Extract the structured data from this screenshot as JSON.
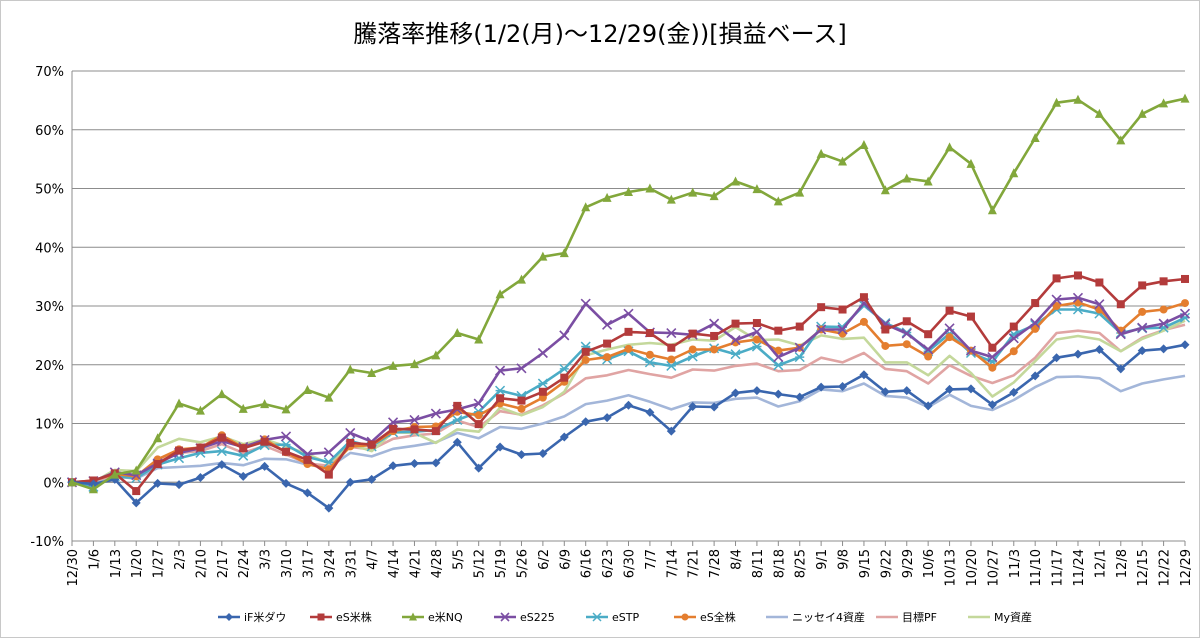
{
  "chart_data": {
    "type": "line",
    "title": "騰落率推移(1/2(月)～12/29(金))[損益ベース]",
    "xlabel": "",
    "ylabel": "",
    "ylim": [
      -10,
      70
    ],
    "y_ticks": [
      "-10%",
      "0%",
      "10%",
      "20%",
      "30%",
      "40%",
      "50%",
      "60%",
      "70%"
    ],
    "y_tick_values": [
      -10,
      0,
      10,
      20,
      30,
      40,
      50,
      60,
      70
    ],
    "grid": "horizontal",
    "legend": "bottom",
    "categories": [
      "12/30",
      "1/6",
      "1/13",
      "1/20",
      "1/27",
      "2/3",
      "2/10",
      "2/17",
      "2/24",
      "3/3",
      "3/10",
      "3/17",
      "3/24",
      "3/31",
      "4/7",
      "4/14",
      "4/21",
      "4/28",
      "5/5",
      "5/12",
      "5/19",
      "5/26",
      "6/2",
      "6/9",
      "6/16",
      "6/23",
      "6/30",
      "7/7",
      "7/14",
      "7/21",
      "7/28",
      "8/4",
      "8/11",
      "8/18",
      "8/25",
      "9/1",
      "9/8",
      "9/15",
      "9/22",
      "9/29",
      "10/6",
      "10/13",
      "10/20",
      "10/27",
      "11/3",
      "11/10",
      "11/17",
      "11/24",
      "12/1",
      "12/8",
      "12/15",
      "12/22",
      "12/29"
    ],
    "series": [
      {
        "name": "iF米ダウ",
        "color": "#3A66AE",
        "marker": "diamond",
        "values": [
          0,
          -0.3,
          0.5,
          -3.5,
          -0.2,
          -0.4,
          0.8,
          3.0,
          1.0,
          2.7,
          -0.2,
          -1.8,
          -4.4,
          0,
          0.5,
          2.8,
          3.2,
          3.3,
          6.8,
          2.4,
          6.0,
          4.7,
          4.9,
          7.7,
          10.3,
          11.0,
          13.1,
          11.9,
          8.7,
          12.9,
          12.8,
          15.2,
          15.6,
          15.0,
          14.5,
          16.2,
          16.3,
          18.3,
          15.4,
          15.6,
          13.0,
          15.8,
          15.9,
          13.2,
          15.3,
          18.1,
          21.2,
          21.8,
          22.6,
          19.3,
          22.4,
          22.7,
          23.4
        ]
      },
      {
        "name": "eS米株",
        "color": "#B33B3B",
        "marker": "square",
        "values": [
          0,
          0.3,
          1.5,
          -1.5,
          3.1,
          5.4,
          5.9,
          7.6,
          5.8,
          6.9,
          5.2,
          3.8,
          1.3,
          6.7,
          6.4,
          9.1,
          9.0,
          8.7,
          13.0,
          9.9,
          14.3,
          13.9,
          15.4,
          17.8,
          22.2,
          23.6,
          25.6,
          25.4,
          22.9,
          25.3,
          24.9,
          27.0,
          27.1,
          25.8,
          26.5,
          29.8,
          29.4,
          31.5,
          26.0,
          27.4,
          25.2,
          29.2,
          28.2,
          22.9,
          26.5,
          30.5,
          34.7,
          35.2,
          34.0,
          30.3,
          33.5,
          34.2,
          34.6
        ]
      },
      {
        "name": "e米NQ",
        "color": "#82A73B",
        "marker": "triangle",
        "values": [
          0,
          -1.2,
          1.3,
          2.0,
          7.5,
          13.4,
          12.2,
          15.0,
          12.5,
          13.3,
          12.4,
          15.7,
          14.4,
          19.2,
          18.6,
          19.8,
          20.1,
          21.6,
          25.4,
          24.3,
          32.0,
          34.5,
          38.4,
          39.0,
          46.8,
          48.4,
          49.4,
          50.0,
          48.1,
          49.3,
          48.7,
          51.2,
          49.9,
          47.8,
          49.3,
          55.9,
          54.6,
          57.4,
          49.7,
          51.7,
          51.2,
          57.0,
          54.2,
          46.3,
          52.6,
          58.6,
          64.6,
          65.1,
          62.7,
          58.2,
          62.7,
          64.5,
          65.3
        ]
      },
      {
        "name": "eS225",
        "color": "#7B4EA3",
        "marker": "x",
        "values": [
          0,
          0.2,
          1.7,
          1.2,
          3.2,
          5.0,
          5.8,
          7.0,
          6.0,
          7.2,
          7.8,
          4.8,
          5.1,
          8.4,
          6.9,
          10.2,
          10.6,
          11.7,
          12.4,
          13.4,
          19.0,
          19.4,
          22.0,
          25.0,
          30.4,
          26.8,
          28.7,
          25.5,
          25.4,
          25.1,
          27.0,
          24.2,
          25.6,
          21.3,
          22.9,
          26.0,
          26.0,
          30.5,
          26.9,
          25.3,
          22.6,
          26.2,
          22.4,
          21.3,
          24.5,
          27.1,
          31.1,
          31.4,
          30.3,
          25.2,
          26.3,
          27.0,
          28.7
        ]
      },
      {
        "name": "eSTP",
        "color": "#4BACC6",
        "marker": "star",
        "values": [
          0,
          -0.8,
          1.0,
          0.7,
          3.0,
          4.1,
          5.0,
          5.3,
          4.5,
          6.3,
          6.4,
          4.3,
          3.4,
          7.0,
          6.1,
          8.5,
          8.6,
          8.9,
          10.6,
          12.0,
          15.6,
          14.7,
          16.8,
          19.3,
          23.1,
          20.9,
          22.3,
          20.4,
          19.8,
          21.4,
          22.8,
          21.8,
          23.1,
          19.9,
          21.3,
          26.5,
          26.4,
          30.1,
          27.1,
          25.5,
          22.3,
          25.3,
          22.0,
          20.5,
          25.2,
          26.8,
          29.4,
          29.4,
          28.7,
          25.4,
          26.2,
          26.3,
          28.0
        ]
      },
      {
        "name": "eS全株",
        "color": "#E47E2F",
        "marker": "circle",
        "values": [
          0,
          0.3,
          1.4,
          1.0,
          3.9,
          5.6,
          5.9,
          8.0,
          5.9,
          7.3,
          5.1,
          3.1,
          2.2,
          6.1,
          6.3,
          8.7,
          9.4,
          9.5,
          12.0,
          11.4,
          13.4,
          12.5,
          14.4,
          17.1,
          20.8,
          21.3,
          22.7,
          21.7,
          20.9,
          22.6,
          22.6,
          23.8,
          24.3,
          22.4,
          22.9,
          26.0,
          25.3,
          27.3,
          23.2,
          23.5,
          21.4,
          24.7,
          22.4,
          19.5,
          22.3,
          26.1,
          30.0,
          30.6,
          29.4,
          25.8,
          29.0,
          29.4,
          30.5
        ]
      },
      {
        "name": "ニッセイ4資産",
        "color": "#A3B6D9",
        "marker": "line",
        "values": [
          0,
          0,
          1.0,
          0.6,
          2.4,
          2.6,
          2.8,
          3.3,
          2.9,
          4.0,
          3.9,
          3.0,
          2.5,
          5.0,
          4.4,
          5.7,
          6.2,
          6.8,
          8.4,
          7.5,
          9.4,
          9.1,
          10.0,
          11.2,
          13.3,
          13.9,
          14.8,
          13.7,
          12.4,
          13.6,
          13.5,
          14.2,
          14.4,
          12.9,
          13.8,
          15.8,
          15.5,
          16.8,
          14.7,
          14.4,
          12.8,
          14.9,
          13.0,
          12.3,
          14.0,
          16.2,
          17.9,
          18.0,
          17.7,
          15.5,
          16.8,
          17.5,
          18.1
        ]
      },
      {
        "name": "目標PF",
        "color": "#E0A4A3",
        "marker": "line",
        "values": [
          0,
          0.2,
          1.2,
          0.7,
          3.5,
          5.0,
          5.3,
          6.5,
          5.0,
          6.2,
          4.7,
          3.2,
          2.8,
          6.0,
          5.6,
          7.4,
          8.0,
          8.3,
          10.5,
          9.4,
          12.1,
          11.5,
          13.1,
          15.1,
          17.7,
          18.2,
          19.1,
          18.4,
          17.8,
          19.2,
          19.0,
          19.8,
          20.2,
          18.9,
          19.1,
          21.2,
          20.4,
          22.0,
          19.3,
          18.9,
          16.8,
          19.9,
          18.1,
          16.9,
          18.2,
          21.2,
          25.4,
          25.8,
          25.4,
          22.3,
          24.6,
          25.9,
          26.8
        ]
      },
      {
        "name": "My資産",
        "color": "#C4D89B",
        "marker": "line",
        "values": [
          0,
          0,
          2.1,
          1.9,
          5.9,
          7.4,
          6.8,
          7.8,
          6.5,
          7.3,
          6.1,
          4.8,
          3.2,
          6.5,
          5.3,
          8.5,
          8.4,
          6.7,
          9.0,
          8.6,
          12.7,
          11.4,
          12.8,
          15.4,
          21.6,
          22.6,
          23.4,
          23.7,
          23.4,
          24.3,
          24.1,
          26.4,
          24.2,
          24.3,
          23.3,
          25.0,
          24.4,
          24.6,
          20.4,
          20.4,
          18.2,
          21.5,
          18.6,
          14.6,
          17.0,
          20.6,
          24.3,
          24.9,
          24.3,
          22.3,
          24.4,
          25.8,
          27.5
        ]
      }
    ]
  }
}
